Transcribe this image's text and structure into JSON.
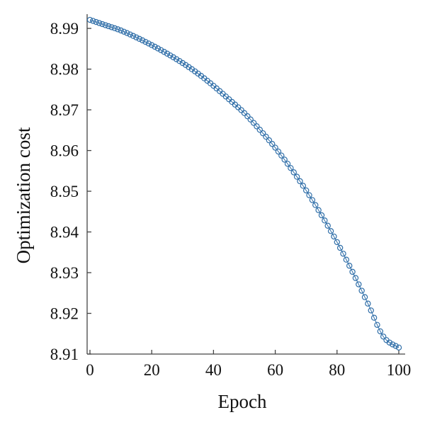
{
  "chart_data": {
    "type": "line",
    "title": "",
    "xlabel": "Epoch",
    "ylabel": "Optimization cost",
    "xlim": [
      0,
      101
    ],
    "ylim": [
      8.91,
      8.9935
    ],
    "xticks": [
      0,
      20,
      40,
      60,
      80,
      100
    ],
    "yticks": [
      8.91,
      8.92,
      8.93,
      8.94,
      8.95,
      8.96,
      8.97,
      8.98,
      8.99
    ],
    "xtick_labels": [
      "0",
      "20",
      "40",
      "60",
      "80",
      "100"
    ],
    "ytick_labels": [
      "8.91",
      "8.92",
      "8.93",
      "8.94",
      "8.95",
      "8.96",
      "8.97",
      "8.98",
      "8.99"
    ],
    "grid": false,
    "marker": "circle-open",
    "series": [
      {
        "color": "#2f6ea8",
        "x": [
          0,
          5,
          10,
          15,
          20,
          25,
          30,
          35,
          40,
          45,
          50,
          55,
          60,
          65,
          70,
          75,
          80,
          85,
          90,
          95,
          100
        ],
        "y": [
          8.9921,
          8.9908,
          8.9895,
          8.9878,
          8.9859,
          8.9838,
          8.9815,
          8.9789,
          8.9759,
          8.9726,
          8.9692,
          8.9651,
          8.9607,
          8.9557,
          8.9502,
          8.9441,
          8.9375,
          8.9302,
          8.9224,
          8.9143,
          8.9116
        ]
      }
    ]
  }
}
